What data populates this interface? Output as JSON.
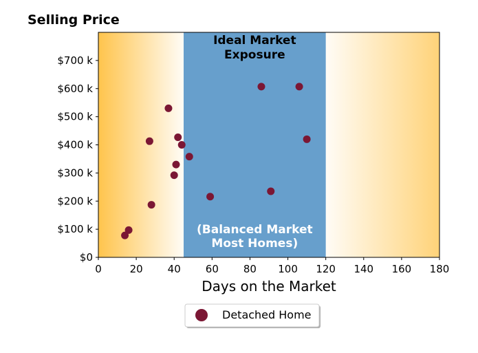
{
  "chart_data": {
    "type": "scatter",
    "title": "Selling Price",
    "xlabel": "Days on the Market",
    "ylabel": "",
    "xlim": [
      0,
      180
    ],
    "ylim": [
      0,
      800000
    ],
    "xticks": [
      0,
      20,
      40,
      60,
      80,
      100,
      120,
      140,
      160,
      180
    ],
    "yticks": [
      0,
      100000,
      200000,
      300000,
      400000,
      500000,
      600000,
      700000
    ],
    "ytick_labels": [
      "$0",
      "$100 k",
      "$200 k",
      "$300 k",
      "$400 k",
      "$500 k",
      "$600 k",
      "$700 k"
    ],
    "grid": false,
    "legend_placement": "bottom-center",
    "ideal_band": {
      "x_start": 45,
      "x_end": 120,
      "label_top": [
        "Ideal Market",
        "Exposure"
      ],
      "label_bottom": [
        "(Balanced Market",
        "Most Homes)"
      ],
      "color": "#679fcc"
    },
    "side_gradient_color": "#ffc44c",
    "series": [
      {
        "name": "Detached Home",
        "color": "#7b1734",
        "x": [
          14,
          16,
          28,
          27,
          37,
          40,
          41,
          42,
          44,
          48,
          59,
          86,
          91,
          106,
          110
        ],
        "y": [
          78000,
          97000,
          187000,
          413000,
          530000,
          292000,
          330000,
          427000,
          400000,
          358000,
          216000,
          607000,
          235000,
          607000,
          420000
        ]
      }
    ]
  }
}
